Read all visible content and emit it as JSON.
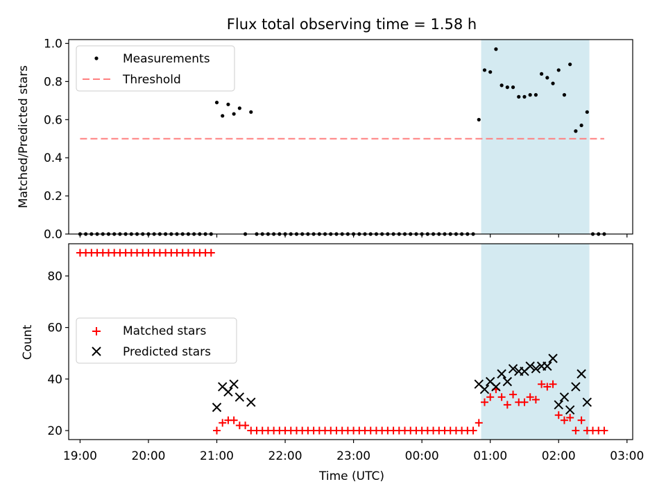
{
  "chart_data": [
    {
      "type": "scatter",
      "title": "Flux total observing time = 1.58 h",
      "ylabel": "Matched/Predicted stars",
      "xlabel": "",
      "xlim": [
        "18:50",
        "03:05"
      ],
      "ylim": [
        0,
        1.02
      ],
      "yticks": [
        "0.0",
        "0.2",
        "0.4",
        "0.6",
        "0.8",
        "1.0"
      ],
      "shaded_interval": [
        "00:52",
        "02:27"
      ],
      "shade_color": "#d4eaf1",
      "legend_position": "upper-left",
      "series": [
        {
          "name": "Measurements",
          "marker": "dot",
          "color": "#000000",
          "x": [
            "19:00",
            "19:05",
            "19:10",
            "19:15",
            "19:20",
            "19:25",
            "19:30",
            "19:35",
            "19:40",
            "19:45",
            "19:50",
            "19:55",
            "20:00",
            "20:05",
            "20:10",
            "20:15",
            "20:20",
            "20:25",
            "20:30",
            "20:35",
            "20:40",
            "20:45",
            "20:50",
            "20:55",
            "21:00",
            "21:05",
            "21:10",
            "21:15",
            "21:20",
            "21:25",
            "21:30",
            "21:35",
            "21:40",
            "21:45",
            "21:50",
            "21:55",
            "22:00",
            "22:05",
            "22:10",
            "22:15",
            "22:20",
            "22:25",
            "22:30",
            "22:35",
            "22:40",
            "22:45",
            "22:50",
            "22:55",
            "23:00",
            "23:05",
            "23:10",
            "23:15",
            "23:20",
            "23:25",
            "23:30",
            "23:35",
            "23:40",
            "23:45",
            "23:50",
            "23:55",
            "00:00",
            "00:05",
            "00:10",
            "00:15",
            "00:20",
            "00:25",
            "00:30",
            "00:35",
            "00:40",
            "00:45",
            "00:50",
            "00:55",
            "01:00",
            "01:05",
            "01:10",
            "01:15",
            "01:20",
            "01:25",
            "01:30",
            "01:35",
            "01:40",
            "01:45",
            "01:50",
            "01:55",
            "02:00",
            "02:05",
            "02:10",
            "02:15",
            "02:20",
            "02:25",
            "02:30",
            "02:35",
            "02:40"
          ],
          "y": [
            0,
            0,
            0,
            0,
            0,
            0,
            0,
            0,
            0,
            0,
            0,
            0,
            0,
            0,
            0,
            0,
            0,
            0,
            0,
            0,
            0,
            0,
            0,
            0,
            0.69,
            0.62,
            0.68,
            0.63,
            0.66,
            0,
            0.64,
            0,
            0,
            0,
            0,
            0,
            0,
            0,
            0,
            0,
            0,
            0,
            0,
            0,
            0,
            0,
            0,
            0,
            0,
            0,
            0,
            0,
            0,
            0,
            0,
            0,
            0,
            0,
            0,
            0,
            0,
            0,
            0,
            0,
            0,
            0,
            0,
            0,
            0,
            0,
            0.6,
            0.86,
            0.85,
            0.97,
            0.78,
            0.77,
            0.77,
            0.72,
            0.72,
            0.73,
            0.73,
            0.84,
            0.82,
            0.79,
            0.86,
            0.73,
            0.89,
            0.54,
            0.57,
            0.64,
            0,
            0,
            0
          ]
        },
        {
          "name": "Threshold",
          "marker": "dashed-line",
          "color": "#ff7f7f",
          "x": [
            "19:00",
            "02:40"
          ],
          "y": [
            0.5,
            0.5
          ]
        }
      ]
    },
    {
      "type": "scatter",
      "title": "",
      "ylabel": "Count",
      "xlabel": "Time (UTC)",
      "xlim": [
        "18:50",
        "03:05"
      ],
      "ylim": [
        16.5,
        92.5
      ],
      "yticks": [
        "20",
        "40",
        "60",
        "80"
      ],
      "xticks": [
        "19:00",
        "20:00",
        "21:00",
        "22:00",
        "23:00",
        "00:00",
        "01:00",
        "02:00",
        "03:00"
      ],
      "shaded_interval": [
        "00:52",
        "02:27"
      ],
      "shade_color": "#d4eaf1",
      "legend_position": "center-left",
      "series": [
        {
          "name": "Matched stars",
          "marker": "plus",
          "color": "#ff0000",
          "x": [
            "19:00",
            "19:05",
            "19:10",
            "19:15",
            "19:20",
            "19:25",
            "19:30",
            "19:35",
            "19:40",
            "19:45",
            "19:50",
            "19:55",
            "20:00",
            "20:05",
            "20:10",
            "20:15",
            "20:20",
            "20:25",
            "20:30",
            "20:35",
            "20:40",
            "20:45",
            "20:50",
            "20:55",
            "21:00",
            "21:05",
            "21:10",
            "21:15",
            "21:20",
            "21:25",
            "21:30",
            "21:35",
            "21:40",
            "21:45",
            "21:50",
            "21:55",
            "22:00",
            "22:05",
            "22:10",
            "22:15",
            "22:20",
            "22:25",
            "22:30",
            "22:35",
            "22:40",
            "22:45",
            "22:50",
            "22:55",
            "23:00",
            "23:05",
            "23:10",
            "23:15",
            "23:20",
            "23:25",
            "23:30",
            "23:35",
            "23:40",
            "23:45",
            "23:50",
            "23:55",
            "00:00",
            "00:05",
            "00:10",
            "00:15",
            "00:20",
            "00:25",
            "00:30",
            "00:35",
            "00:40",
            "00:45",
            "00:50",
            "00:55",
            "01:00",
            "01:05",
            "01:10",
            "01:15",
            "01:20",
            "01:25",
            "01:30",
            "01:35",
            "01:40",
            "01:45",
            "01:50",
            "01:55",
            "02:00",
            "02:05",
            "02:10",
            "02:15",
            "02:20",
            "02:25",
            "02:30",
            "02:35",
            "02:40"
          ],
          "y": [
            89,
            89,
            89,
            89,
            89,
            89,
            89,
            89,
            89,
            89,
            89,
            89,
            89,
            89,
            89,
            89,
            89,
            89,
            89,
            89,
            89,
            89,
            89,
            89,
            20,
            23,
            24,
            24,
            22,
            22,
            20,
            20,
            20,
            20,
            20,
            20,
            20,
            20,
            20,
            20,
            20,
            20,
            20,
            20,
            20,
            20,
            20,
            20,
            20,
            20,
            20,
            20,
            20,
            20,
            20,
            20,
            20,
            20,
            20,
            20,
            20,
            20,
            20,
            20,
            20,
            20,
            20,
            20,
            20,
            20,
            23,
            31,
            33,
            36,
            33,
            30,
            34,
            31,
            31,
            33,
            32,
            38,
            37,
            38,
            26,
            24,
            25,
            20,
            24,
            20,
            20,
            20,
            20
          ]
        },
        {
          "name": "Predicted stars",
          "marker": "cross",
          "color": "#000000",
          "x": [
            "21:00",
            "21:05",
            "21:10",
            "21:15",
            "21:20",
            "21:30",
            "00:50",
            "00:55",
            "01:00",
            "01:05",
            "01:10",
            "01:15",
            "01:20",
            "01:25",
            "01:30",
            "01:35",
            "01:40",
            "01:45",
            "01:50",
            "01:55",
            "02:00",
            "02:05",
            "02:10",
            "02:15",
            "02:20",
            "02:25"
          ],
          "y": [
            29,
            37,
            35,
            38,
            33,
            31,
            38,
            36,
            39,
            37,
            42,
            39,
            44,
            43,
            43,
            45,
            44,
            45,
            45,
            48,
            30,
            33,
            28,
            37,
            42,
            31
          ]
        }
      ]
    }
  ]
}
